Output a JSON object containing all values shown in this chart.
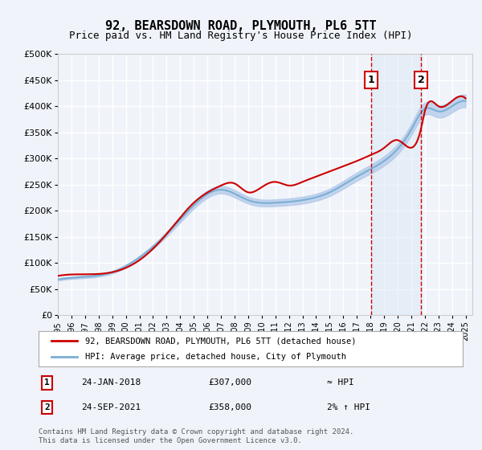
{
  "title": "92, BEARSDOWN ROAD, PLYMOUTH, PL6 5TT",
  "subtitle": "Price paid vs. HM Land Registry's House Price Index (HPI)",
  "ylabel_ticks": [
    "£0",
    "£50K",
    "£100K",
    "£150K",
    "£200K",
    "£250K",
    "£300K",
    "£350K",
    "£400K",
    "£450K",
    "£500K"
  ],
  "ytick_values": [
    0,
    50000,
    100000,
    150000,
    200000,
    250000,
    300000,
    350000,
    400000,
    450000,
    500000
  ],
  "xlim_start": 1995.0,
  "xlim_end": 2025.5,
  "ylim_min": 0,
  "ylim_max": 500000,
  "hpi_color": "#aec6e8",
  "house_color": "#cc0000",
  "background_color": "#f0f4fa",
  "plot_bg_color": "#f0f4fa",
  "grid_color": "#ffffff",
  "marker1_x": 2018.07,
  "marker2_x": 2021.73,
  "marker1_label": "1",
  "marker2_label": "2",
  "marker1_date": "24-JAN-2018",
  "marker1_price": "£307,000",
  "marker1_rel": "≈ HPI",
  "marker2_date": "24-SEP-2021",
  "marker2_price": "£358,000",
  "marker2_rel": "2% ↑ HPI",
  "legend_house": "92, BEARSDOWN ROAD, PLYMOUTH, PL6 5TT (detached house)",
  "legend_hpi": "HPI: Average price, detached house, City of Plymouth",
  "footer": "Contains HM Land Registry data © Crown copyright and database right 2024.\nThis data is licensed under the Open Government Licence v3.0.",
  "xtick_years": [
    1995,
    1996,
    1997,
    1998,
    1999,
    2000,
    2001,
    2002,
    2003,
    2004,
    2005,
    2006,
    2007,
    2008,
    2009,
    2010,
    2011,
    2012,
    2013,
    2014,
    2015,
    2016,
    2017,
    2018,
    2019,
    2020,
    2021,
    2022,
    2023,
    2024,
    2025
  ]
}
